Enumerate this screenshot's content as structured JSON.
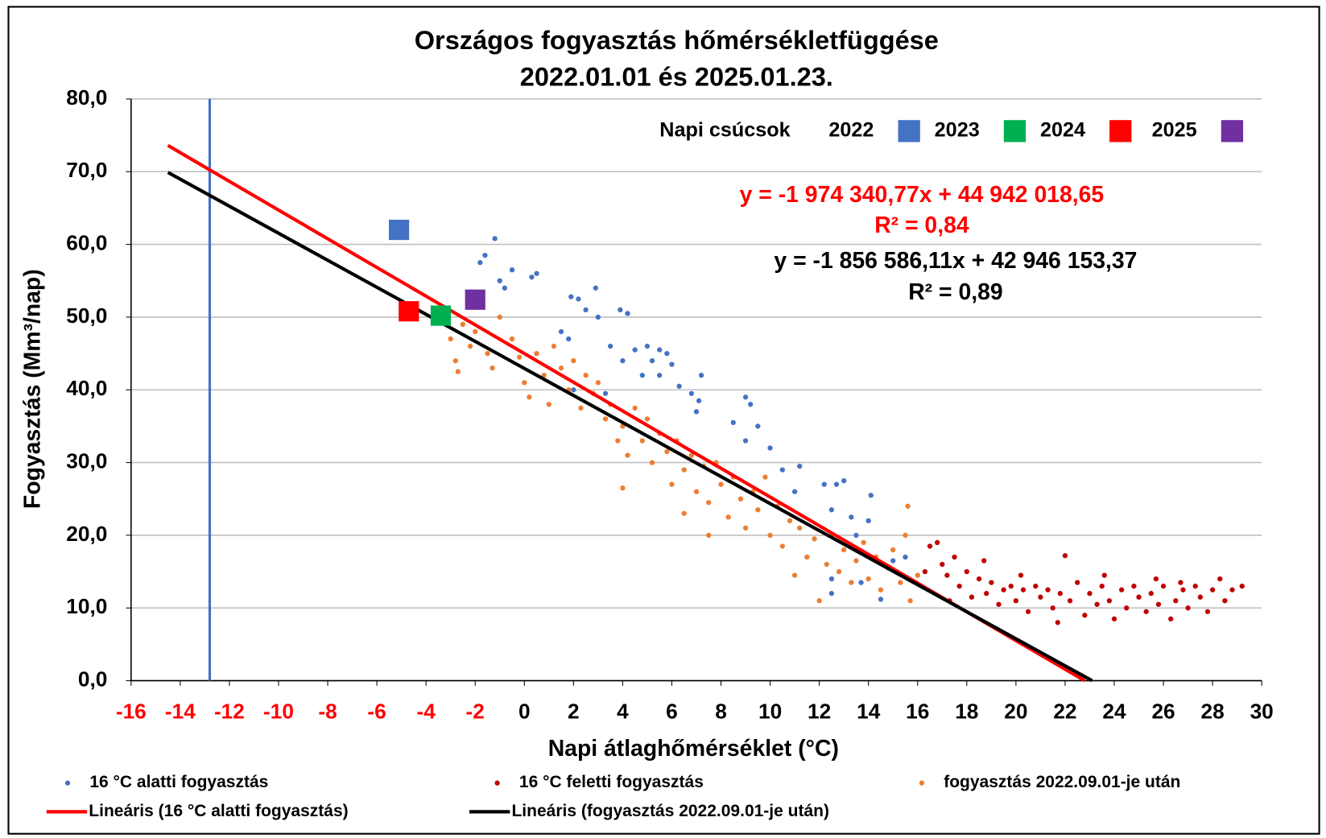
{
  "chart_data": {
    "type": "scatter",
    "title": [
      "Országos fogyasztás hőmérsékletfüggése",
      "2022.01.01 és 2025.01.23."
    ],
    "xlabel": "Napi átlaghőmérséklet (°C)",
    "ylabel": "Fogyasztás (Mm³/nap)",
    "xlim": [
      -16,
      30
    ],
    "ylim": [
      0,
      80
    ],
    "xticks": [
      -16,
      -14,
      -12,
      -10,
      -8,
      -6,
      -4,
      -2,
      0,
      2,
      4,
      6,
      8,
      10,
      12,
      14,
      16,
      18,
      20,
      22,
      24,
      26,
      28,
      30
    ],
    "xtick_negative_color": "#ff0000",
    "yticks": [
      {
        "value": 0,
        "label": "0,0"
      },
      {
        "value": 10,
        "label": "10,0"
      },
      {
        "value": 20,
        "label": "20,0"
      },
      {
        "value": 30,
        "label": "30,0"
      },
      {
        "value": 40,
        "label": "40,0"
      },
      {
        "value": 50,
        "label": "50,0"
      },
      {
        "value": 60,
        "label": "60,0"
      },
      {
        "value": 70,
        "label": "70,0"
      },
      {
        "value": 80,
        "label": "80,0"
      }
    ],
    "grid": true,
    "vline": {
      "x": -12.8,
      "color": "#4472c4"
    },
    "series": [
      {
        "name": "16 °C alatti  fogyasztás",
        "kind": "scatter",
        "color": "#4472c4",
        "x": [
          -1.2,
          -1.6,
          -1.8,
          -0.5,
          0.5,
          -1,
          -2,
          0.3,
          -0.8,
          2.9,
          1.9,
          2.2,
          2.5,
          3,
          3.9,
          4.2,
          1.5,
          1.8,
          3.5,
          4.5,
          5,
          5.5,
          5.8,
          4,
          5.2,
          6,
          4.8,
          5.5,
          7.2,
          6.3,
          6.8,
          7.1,
          7,
          9,
          9.2,
          8.5,
          9.5,
          9,
          10,
          10.5,
          11.2,
          12.2,
          12.7,
          13,
          11,
          12.5,
          13.3,
          13.5,
          14.1,
          14,
          12.5,
          12.5,
          14.5,
          15.5,
          15,
          13.7,
          2,
          3.3
        ],
        "y": [
          60.8,
          58.5,
          57.5,
          56.5,
          56,
          55,
          53,
          55.5,
          54,
          54,
          52.8,
          52.5,
          51,
          50,
          51,
          50.5,
          48,
          47,
          46,
          45.5,
          46,
          45.5,
          45,
          44,
          44,
          43.5,
          42,
          42,
          42,
          40.5,
          39.5,
          38.5,
          37,
          39,
          38,
          35.5,
          35,
          33,
          32,
          29,
          29.5,
          27,
          27,
          27.5,
          26,
          23.5,
          22.5,
          20,
          25.5,
          22,
          14,
          12,
          11.2,
          17,
          16.5,
          13.5,
          40,
          39.5
        ]
      },
      {
        "name": "16 °C feletti fogyasztás",
        "kind": "scatter",
        "color": "#c00000",
        "x": [
          16.3,
          16.5,
          16.8,
          17,
          17.2,
          17.5,
          17.7,
          18,
          18.2,
          18.5,
          18.8,
          19,
          19.3,
          19.5,
          19.8,
          20,
          20.3,
          20.5,
          20.8,
          21,
          21.3,
          21.5,
          21.8,
          22,
          22.2,
          22.5,
          22.8,
          23,
          23.3,
          23.5,
          23.8,
          24,
          24.3,
          24.5,
          24.8,
          25,
          25.3,
          25.5,
          25.8,
          26,
          26.3,
          26.5,
          26.8,
          27,
          27.3,
          27.5,
          27.8,
          28,
          28.3,
          28.5,
          28.8,
          29.2,
          17.3,
          18.7,
          20.2,
          21.7,
          23.6,
          25.7,
          26.7
        ],
        "y": [
          15,
          18.5,
          19,
          16,
          14.5,
          17,
          13,
          15,
          11.5,
          14,
          12,
          13.5,
          10.5,
          12.5,
          13,
          11,
          12.5,
          9.5,
          13,
          11.5,
          12.5,
          10,
          12,
          17.2,
          11,
          13.5,
          9,
          12,
          10.5,
          13,
          11,
          8.5,
          12.5,
          10,
          13,
          11.5,
          9.5,
          12,
          10.5,
          13,
          8.5,
          11,
          12.5,
          10,
          13,
          11.5,
          9.5,
          12.5,
          14,
          11,
          12.5,
          13,
          11,
          16.5,
          14.5,
          8,
          14.5,
          14,
          13.5
        ]
      },
      {
        "name": "fogyasztás 2022.09.01-je után",
        "kind": "scatter",
        "color": "#ed7d31",
        "x": [
          -3,
          -2.8,
          -2.7,
          -2.5,
          -2.2,
          -2,
          -1.5,
          -1,
          -1.3,
          -0.5,
          -0.2,
          0,
          0.2,
          0.5,
          0.8,
          1,
          1.2,
          1.5,
          1.8,
          2,
          2.3,
          2.5,
          2.8,
          3,
          3.3,
          3.5,
          3.8,
          4,
          4.2,
          4.5,
          4.8,
          5,
          5.2,
          5.5,
          5.8,
          6,
          6.2,
          6.5,
          6.8,
          7,
          7.3,
          7.5,
          7.8,
          8,
          8.3,
          8.5,
          8.8,
          9,
          9.3,
          9.5,
          9.8,
          10,
          10.3,
          10.5,
          10.8,
          11,
          11.2,
          11.5,
          11.8,
          12,
          12.3,
          12.5,
          12.8,
          13,
          13.3,
          13.5,
          13.8,
          14,
          14.3,
          14.5,
          14.8,
          15,
          15.3,
          15.5,
          15.7,
          15.6,
          16,
          -3.3,
          4,
          6.5,
          7.5
        ],
        "y": [
          47,
          44,
          42.5,
          49,
          46,
          48,
          45,
          50,
          43,
          47,
          44.5,
          41,
          39,
          45,
          42,
          38,
          46,
          43,
          40,
          44,
          37.5,
          42,
          39.5,
          41,
          36,
          38,
          33,
          35,
          31,
          37.5,
          33,
          36,
          30,
          34,
          31.5,
          27,
          33,
          29,
          31,
          26,
          29.5,
          24.5,
          30,
          27,
          22.5,
          28,
          25,
          21,
          26,
          23.5,
          28,
          20,
          24,
          18.5,
          22,
          14.5,
          21,
          17,
          19.5,
          11,
          16,
          20,
          15,
          18,
          13.5,
          16.5,
          19,
          14,
          17,
          12.5,
          15.5,
          18,
          13.5,
          20,
          11,
          24,
          14.5,
          50.5,
          26.5,
          23,
          20
        ]
      },
      {
        "name": "Lineáris (16 °C alatti  fogyasztás)",
        "kind": "line",
        "color": "#ff0000",
        "x": [
          -14.5,
          22.8
        ],
        "y": [
          73.6,
          0
        ]
      },
      {
        "name": "Lineáris (fogyasztás 2022.09.01-je után)",
        "kind": "line",
        "color": "#000000",
        "x": [
          -14.5,
          23.1
        ],
        "y": [
          69.9,
          0
        ]
      }
    ],
    "peaks": {
      "title": "Napi csúcsok",
      "series": [
        {
          "name": "2022",
          "color": "#4472c4",
          "x": [
            -5.1
          ],
          "y": [
            62
          ]
        },
        {
          "name": "2023",
          "color": "#00b050",
          "x": [
            -3.4
          ],
          "y": [
            50.2
          ]
        },
        {
          "name": "2024",
          "color": "#ff0000",
          "x": [
            -4.7
          ],
          "y": [
            50.8
          ]
        },
        {
          "name": "2025",
          "color": "#7030a0",
          "x": [
            -2
          ],
          "y": [
            52.4
          ]
        }
      ]
    },
    "annotations": [
      {
        "text": "y = -1 974 340,77x + 44 942 018,65",
        "color": "#ff0000"
      },
      {
        "text": "R² = 0,84",
        "color": "#ff0000"
      },
      {
        "text": "y = -1 856 586,11x + 42 946 153,37",
        "color": "#000000"
      },
      {
        "text": "R² = 0,89",
        "color": "#000000"
      }
    ]
  }
}
